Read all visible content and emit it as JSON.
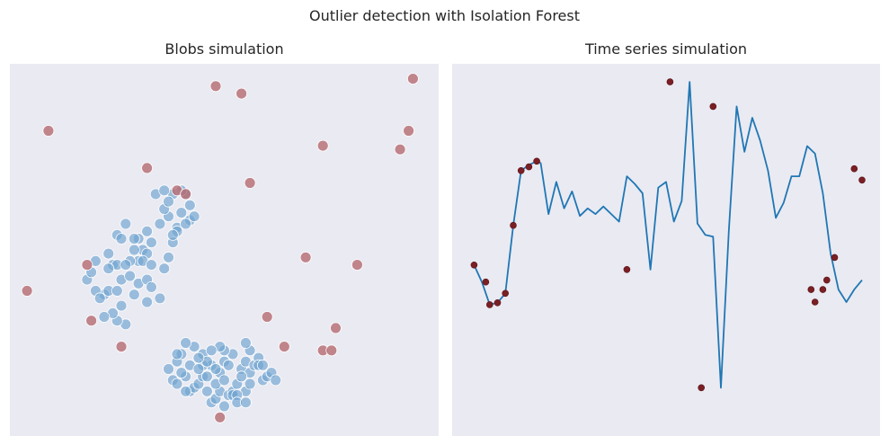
{
  "figure": {
    "suptitle": "Outlier detection with Isolation Forest",
    "colors": {
      "background": "#eaeaf2",
      "inlier": "#1f77b4",
      "outlier": "#7f1d1d",
      "line": "#1f77b4"
    }
  },
  "chart_data": [
    {
      "type": "scatter",
      "title": "Blobs simulation",
      "xlabel": "",
      "ylabel": "",
      "xlim": [
        0,
        100
      ],
      "ylim": [
        0,
        100
      ],
      "grid": false,
      "series": [
        {
          "role": "inlier",
          "points": [
            [
              34,
              65
            ],
            [
              37,
              59
            ],
            [
              38,
              65
            ],
            [
              39,
              56
            ],
            [
              40,
              60
            ],
            [
              41,
              65
            ],
            [
              42,
              58
            ],
            [
              43,
              59
            ],
            [
              36,
              61
            ],
            [
              35,
              57
            ],
            [
              32,
              55
            ],
            [
              33,
              52
            ],
            [
              30,
              53
            ],
            [
              27,
              57
            ],
            [
              25,
              54
            ],
            [
              24,
              46
            ],
            [
              23,
              49
            ],
            [
              22,
              38
            ],
            [
              20,
              47
            ],
            [
              18,
              42
            ],
            [
              20,
              39
            ],
            [
              25,
              46
            ],
            [
              26,
              42
            ],
            [
              28,
              43
            ],
            [
              30,
              47
            ],
            [
              31,
              50
            ],
            [
              32,
              49
            ],
            [
              26,
              53
            ],
            [
              28,
              47
            ],
            [
              30,
              41
            ],
            [
              35,
              37
            ],
            [
              36,
              45
            ],
            [
              32,
              42
            ],
            [
              37,
              48
            ],
            [
              38,
              52
            ],
            [
              39,
              55
            ],
            [
              29,
              38
            ],
            [
              26,
              35
            ],
            [
              27,
              30
            ],
            [
              25,
              31
            ],
            [
              24,
              33
            ],
            [
              22,
              32
            ],
            [
              21,
              37
            ],
            [
              29,
              53
            ],
            [
              31,
              47
            ],
            [
              33,
              46
            ],
            [
              33,
              40
            ],
            [
              23,
              39
            ],
            [
              25,
              39
            ],
            [
              32,
              36
            ],
            [
              37,
              63
            ],
            [
              36,
              66
            ],
            [
              40,
              66
            ],
            [
              41,
              57
            ],
            [
              42,
              62
            ],
            [
              38,
              54
            ],
            [
              23,
              45
            ],
            [
              27,
              46
            ],
            [
              29,
              50
            ],
            [
              19,
              44
            ],
            [
              37,
              18
            ],
            [
              39,
              20
            ],
            [
              40,
              22
            ],
            [
              41,
              16
            ],
            [
              42,
              12
            ],
            [
              43,
              13
            ],
            [
              44,
              14
            ],
            [
              45,
              16
            ],
            [
              46,
              12
            ],
            [
              47,
              9
            ],
            [
              48,
              10
            ],
            [
              49,
              12
            ],
            [
              50,
              8
            ],
            [
              51,
              11
            ],
            [
              52,
              12
            ],
            [
              53,
              14
            ],
            [
              54,
              18
            ],
            [
              55,
              20
            ],
            [
              56,
              17
            ],
            [
              57,
              19
            ],
            [
              58,
              21
            ],
            [
              59,
              15
            ],
            [
              60,
              16
            ],
            [
              61,
              17
            ],
            [
              62,
              15
            ],
            [
              55,
              12
            ],
            [
              56,
              14
            ],
            [
              52,
              11
            ],
            [
              49,
              17
            ],
            [
              47,
              19
            ],
            [
              45,
              22
            ],
            [
              43,
              24
            ],
            [
              41,
              25
            ],
            [
              39,
              22
            ],
            [
              38,
              15
            ],
            [
              39,
              14
            ],
            [
              40,
              17
            ],
            [
              41,
              12
            ],
            [
              45,
              19
            ],
            [
              46,
              20
            ],
            [
              48,
              18
            ],
            [
              50,
              20
            ],
            [
              51,
              19
            ],
            [
              53,
              11
            ],
            [
              54,
              16
            ],
            [
              56,
              23
            ],
            [
              58,
              19
            ],
            [
              59,
              19
            ],
            [
              55,
              25
            ],
            [
              52,
              22
            ],
            [
              50,
              23
            ],
            [
              49,
              24
            ],
            [
              47,
              23
            ],
            [
              44,
              21
            ],
            [
              42,
              19
            ],
            [
              44,
              18
            ],
            [
              46,
              16
            ],
            [
              48,
              14
            ],
            [
              50,
              15
            ],
            [
              53,
              9
            ],
            [
              55,
              9
            ]
          ]
        },
        {
          "role": "outlier",
          "points": [
            [
              48,
              94
            ],
            [
              54,
              92
            ],
            [
              94,
              96
            ],
            [
              9,
              82
            ],
            [
              93,
              82
            ],
            [
              73,
              78
            ],
            [
              32,
              72
            ],
            [
              91,
              77
            ],
            [
              39,
              66
            ],
            [
              41,
              65
            ],
            [
              56,
              68
            ],
            [
              69,
              48
            ],
            [
              81,
              46
            ],
            [
              18,
              46
            ],
            [
              4,
              39
            ],
            [
              60,
              32
            ],
            [
              76,
              29
            ],
            [
              19,
              31
            ],
            [
              26,
              24
            ],
            [
              64,
              24
            ],
            [
              73,
              23
            ],
            [
              75,
              23
            ],
            [
              49,
              5
            ]
          ]
        }
      ]
    },
    {
      "type": "line",
      "title": "Time series simulation",
      "xlabel": "",
      "ylabel": "",
      "xlim": [
        0,
        100
      ],
      "ylim": [
        -4,
        5
      ],
      "grid": false,
      "series": [
        {
          "role": "signal",
          "x": [
            1,
            3,
            5,
            7,
            9,
            11,
            13,
            15,
            17,
            18,
            20,
            22,
            24,
            26,
            28,
            30,
            32,
            34,
            36,
            38,
            40,
            42,
            44,
            46,
            48,
            50,
            52,
            54,
            56,
            58,
            60,
            62,
            64,
            66,
            68,
            70,
            72,
            74,
            76,
            78,
            80,
            82,
            84,
            86,
            88,
            90,
            92,
            94,
            96,
            98,
            100
          ],
          "y": [
            0.1,
            -0.35,
            -0.95,
            -0.9,
            -0.65,
            1.15,
            2.6,
            2.75,
            2.85,
            2.8,
            1.45,
            2.3,
            1.6,
            2.05,
            1.4,
            1.6,
            1.45,
            1.65,
            1.45,
            1.25,
            2.45,
            2.25,
            2.0,
            -0.02,
            2.15,
            2.3,
            1.25,
            1.8,
            4.95,
            1.2,
            0.9,
            0.85,
            -3.15,
            1.0,
            4.3,
            3.1,
            4.0,
            3.4,
            2.6,
            1.35,
            1.75,
            2.45,
            2.45,
            3.25,
            3.05,
            2.0,
            0.4,
            -0.55,
            -0.88,
            -0.55,
            -0.3
          ]
        }
      ],
      "outliers": [
        [
          1,
          0.1
        ],
        [
          4,
          -0.35
        ],
        [
          5,
          -0.95
        ],
        [
          7,
          -0.9
        ],
        [
          9,
          -0.65
        ],
        [
          11,
          1.15
        ],
        [
          13,
          2.6
        ],
        [
          15,
          2.7
        ],
        [
          17,
          2.85
        ],
        [
          40,
          -0.02
        ],
        [
          51,
          4.95
        ],
        [
          59,
          -3.15
        ],
        [
          62,
          4.3
        ],
        [
          87,
          -0.55
        ],
        [
          88,
          -0.88
        ],
        [
          90,
          -0.55
        ],
        [
          91,
          -0.3
        ],
        [
          93,
          0.3
        ],
        [
          98,
          2.65
        ],
        [
          100,
          2.35
        ]
      ]
    }
  ]
}
